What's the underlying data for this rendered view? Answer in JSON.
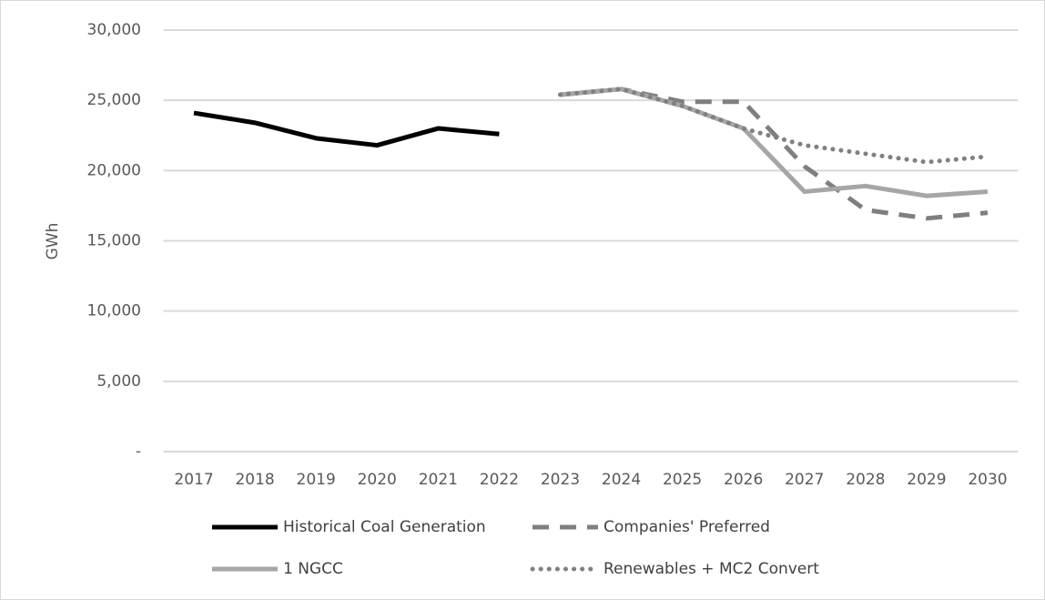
{
  "chart_data": {
    "type": "line",
    "y_label": "GWh",
    "categories": [
      "2017",
      "2018",
      "2019",
      "2020",
      "2021",
      "2022",
      "2023",
      "2024",
      "2025",
      "2026",
      "2027",
      "2028",
      "2029",
      "2030"
    ],
    "series": [
      {
        "name": "Historical Coal Generation",
        "color": "#000000",
        "style": "solid",
        "values": [
          24100,
          23400,
          22300,
          21800,
          23000,
          22600,
          null,
          null,
          null,
          null,
          null,
          null,
          null,
          null
        ]
      },
      {
        "name": "Companies' Preferred",
        "color": "#7f7f7f",
        "style": "dashed",
        "values": [
          null,
          null,
          null,
          null,
          null,
          null,
          25400,
          25800,
          24900,
          24900,
          20300,
          17200,
          16600,
          17000
        ]
      },
      {
        "name": "1 NGCC",
        "color": "#a6a6a6",
        "style": "solid",
        "values": [
          null,
          null,
          null,
          null,
          null,
          null,
          25400,
          25800,
          24600,
          23000,
          18500,
          18900,
          18200,
          18500
        ]
      },
      {
        "name": "Renewables + MC2 Convert",
        "color": "#808080",
        "style": "dotted",
        "values": [
          null,
          null,
          null,
          null,
          null,
          null,
          25400,
          25800,
          24600,
          23000,
          21800,
          21200,
          20600,
          21000
        ]
      }
    ],
    "ylim": [
      0,
      30000
    ],
    "yticks": [
      {
        "value": 0,
        "label": "-"
      },
      {
        "value": 5000,
        "label": "5,000"
      },
      {
        "value": 10000,
        "label": "10,000"
      },
      {
        "value": 15000,
        "label": "15,000"
      },
      {
        "value": 20000,
        "label": "20,000"
      },
      {
        "value": 25000,
        "label": "25,000"
      },
      {
        "value": 30000,
        "label": "30,000"
      }
    ],
    "grid": true
  }
}
